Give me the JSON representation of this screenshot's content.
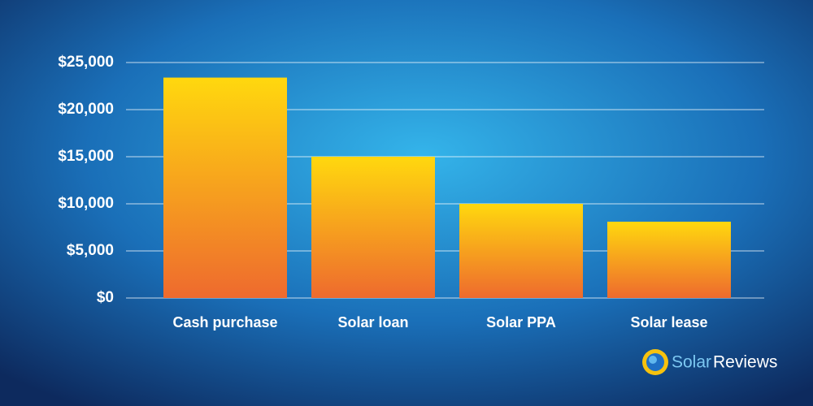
{
  "chart_data": {
    "type": "bar",
    "categories": [
      "Cash purchase",
      "Solar loan",
      "Solar PPA",
      "Solar lease"
    ],
    "values": [
      23400,
      15000,
      10000,
      8100
    ],
    "ylim": [
      0,
      25000
    ],
    "yticks": [
      {
        "value": 0,
        "label": "$0"
      },
      {
        "value": 5000,
        "label": "$5,000"
      },
      {
        "value": 10000,
        "label": "$10,000"
      },
      {
        "value": 15000,
        "label": "$15,000"
      },
      {
        "value": 20000,
        "label": "$20,000"
      },
      {
        "value": 25000,
        "label": "$25,000"
      }
    ],
    "grid": true
  },
  "logo": {
    "text": [
      "Solar",
      "Reviews"
    ]
  }
}
